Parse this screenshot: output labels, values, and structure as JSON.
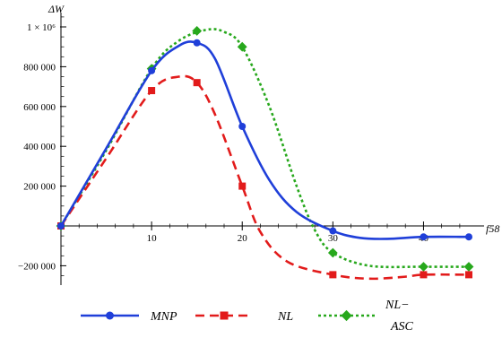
{
  "chart_data": {
    "type": "line",
    "title": "",
    "xlabel": "f58",
    "ylabel": "ΔW",
    "xlim": [
      0,
      46
    ],
    "ylim": [
      -300000,
      1100000
    ],
    "x_ticks": [
      10,
      20,
      30,
      40
    ],
    "x_tick_labels": [
      "10",
      "20",
      "30",
      "40"
    ],
    "y_ticks": [
      -200000,
      200000,
      400000,
      600000,
      800000,
      1000000
    ],
    "y_tick_labels": [
      "−200 000",
      "200 000",
      "400 000",
      "600 000",
      "800 000",
      "1 × 10⁶"
    ],
    "grid": false,
    "legend_position": "bottom",
    "series": [
      {
        "name": "MNP",
        "color": "#1f3fd9",
        "line_style": "solid",
        "marker": "circle",
        "x": [
          0,
          10,
          15,
          20,
          30,
          40,
          45
        ],
        "y": [
          0,
          780000,
          920000,
          500000,
          -25000,
          -55000,
          -55000
        ],
        "curve_x": [
          0,
          5,
          10,
          13,
          15,
          17,
          20,
          23,
          26,
          30,
          33,
          36,
          40,
          45
        ],
        "curve_y": [
          0,
          390000,
          780000,
          905000,
          920000,
          840000,
          500000,
          230000,
          70000,
          -25000,
          -60000,
          -65000,
          -55000,
          -55000
        ]
      },
      {
        "name": "NL",
        "color": "#e21b1b",
        "line_style": "dashed",
        "marker": "square",
        "x": [
          0,
          10,
          15,
          20,
          30,
          40,
          45
        ],
        "y": [
          0,
          680000,
          720000,
          200000,
          -245000,
          -245000,
          -245000
        ],
        "curve_x": [
          0,
          5,
          10,
          13,
          15,
          17,
          20,
          22,
          25,
          30,
          34,
          38,
          40,
          45
        ],
        "curve_y": [
          0,
          340000,
          680000,
          750000,
          720000,
          560000,
          200000,
          -30000,
          -180000,
          -245000,
          -265000,
          -255000,
          -245000,
          -245000
        ]
      },
      {
        "name": "NL−ASC",
        "color": "#27a81c",
        "line_style": "dotted",
        "marker": "diamond",
        "x": [
          0,
          10,
          15,
          20,
          30,
          40,
          45
        ],
        "y": [
          0,
          790000,
          980000,
          900000,
          -135000,
          -205000,
          -205000
        ],
        "curve_x": [
          0,
          5,
          10,
          13,
          16,
          18,
          20,
          23,
          26,
          28,
          30,
          34,
          40,
          45
        ],
        "curve_y": [
          0,
          380000,
          790000,
          930000,
          985000,
          975000,
          900000,
          600000,
          200000,
          -20000,
          -135000,
          -200000,
          -205000,
          -205000
        ]
      }
    ]
  },
  "legend": {
    "items": [
      {
        "label": "MNP"
      },
      {
        "label_line1": "NL"
      },
      {
        "label_line1": "NL−",
        "label_line2": "ASC"
      }
    ]
  }
}
